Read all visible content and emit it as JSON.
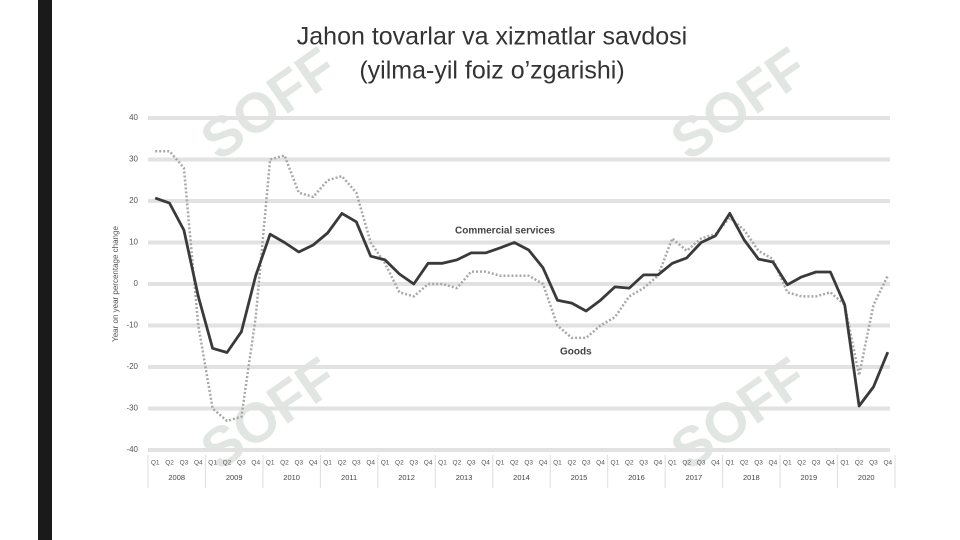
{
  "watermark": "SOFF",
  "chart_data": {
    "type": "line",
    "title": "Jahon tovarlar va xizmatlar savdosi",
    "subtitle": "(yilma-yil foiz o’zgarishi)",
    "y_label": "Year on year percentage change",
    "categories": [
      "Q1",
      "Q2",
      "Q3",
      "Q4",
      "Q1",
      "Q2",
      "Q3",
      "Q4",
      "Q1",
      "Q2",
      "Q3",
      "Q4",
      "Q1",
      "Q2",
      "Q3",
      "Q4",
      "Q1",
      "Q2",
      "Q3",
      "Q4",
      "Q1",
      "Q2",
      "Q3",
      "Q4",
      "Q1",
      "Q2",
      "Q3",
      "Q4",
      "Q1",
      "Q2",
      "Q3",
      "Q4",
      "Q1",
      "Q2",
      "Q3",
      "Q4",
      "Q1",
      "Q2",
      "Q3",
      "Q4",
      "Q1",
      "Q2",
      "Q3",
      "Q4",
      "Q1",
      "Q2",
      "Q3",
      "Q4",
      "Q1",
      "Q2",
      "Q3",
      "Q4"
    ],
    "years": [
      "2008",
      "2009",
      "2010",
      "2011",
      "2012",
      "2013",
      "2014",
      "2015",
      "2016",
      "2017",
      "2018",
      "2019",
      "2020"
    ],
    "series": [
      {
        "name": "Commercial services",
        "color": "#3a3a3a",
        "dash": false,
        "values": [
          20.7,
          19.5,
          13,
          -3,
          -15.5,
          -16.5,
          -11.5,
          2,
          12,
          10,
          7.7,
          9.4,
          12.3,
          17,
          15,
          6.7,
          5.8,
          2.4,
          0,
          5,
          5,
          5.8,
          7.5,
          7.5,
          8.7,
          10,
          8.2,
          3.9,
          -3.9,
          -4.6,
          -6.5,
          -3.9,
          -0.7,
          -1,
          2.2,
          2.2,
          5,
          6.3,
          10,
          11.6,
          17,
          10.6,
          6,
          5.3,
          -0.2,
          1.7,
          2.9,
          2.9,
          -5,
          -29.4,
          -24.8,
          -16.4
        ]
      },
      {
        "name": "Goods",
        "color": "#a8a8a8",
        "dash": true,
        "values": [
          32,
          32,
          28,
          -10,
          -30,
          -33,
          -32,
          -8,
          30,
          31,
          22,
          21,
          25,
          26,
          22,
          10,
          5,
          -2,
          -3,
          0,
          0,
          -1,
          3,
          3,
          2,
          2,
          2,
          0,
          -10,
          -13,
          -13,
          -10,
          -8,
          -3,
          -1,
          2,
          11,
          8,
          11,
          12,
          16,
          13,
          8,
          6,
          -2,
          -3,
          -3,
          -2,
          -5,
          -22,
          -5,
          2
        ]
      }
    ],
    "ylim": [
      -40,
      40
    ],
    "yticks": [
      40,
      30,
      20,
      10,
      0,
      -10,
      -20,
      -30,
      -40
    ],
    "grid": true
  }
}
